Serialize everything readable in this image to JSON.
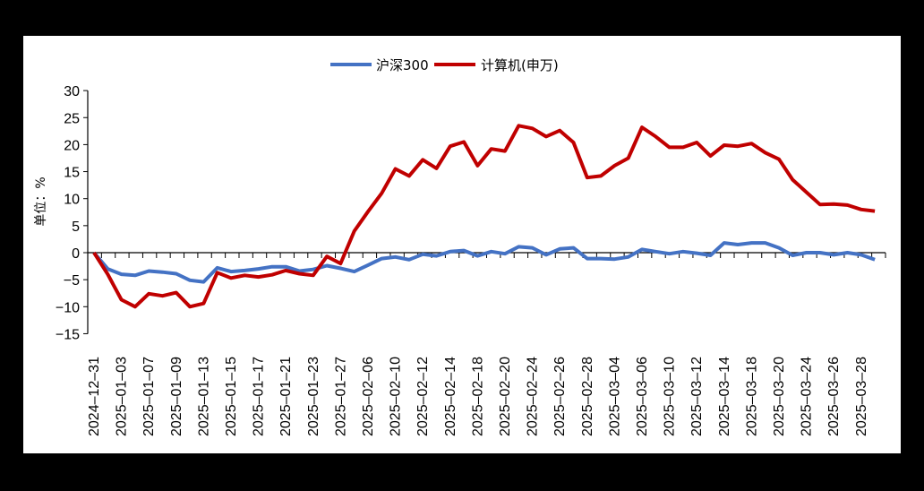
{
  "chart_data": {
    "type": "line",
    "title": "",
    "xlabel": "",
    "ylabel": "单位：%",
    "ylim": [
      -15,
      30
    ],
    "yticks": [
      30,
      25,
      20,
      15,
      10,
      5,
      0,
      -5,
      -10,
      -15
    ],
    "grid": false,
    "legend_position": "top",
    "x_tick_labels": [
      "2024-12-31",
      "2025-01-03",
      "2025-01-07",
      "2025-01-09",
      "2025-01-13",
      "2025-01-15",
      "2025-01-17",
      "2025-01-21",
      "2025-01-23",
      "2025-01-27",
      "2025-02-06",
      "2025-02-10",
      "2025-02-12",
      "2025-02-14",
      "2025-02-18",
      "2025-02-20",
      "2025-02-24",
      "2025-02-26",
      "2025-02-28",
      "2025-03-04",
      "2025-03-06",
      "2025-03-10",
      "2025-03-12",
      "2025-03-14",
      "2025-03-18",
      "2025-03-20",
      "2025-03-24",
      "2025-03-26",
      "2025-03-28"
    ],
    "label_every": 2,
    "point_count": 58,
    "series": [
      {
        "name": "沪深300",
        "color": "#4472C4",
        "values": [
          0,
          -3,
          -4,
          -4.2,
          -3.4,
          -3.6,
          -3.9,
          -5.1,
          -5.4,
          -2.8,
          -3.5,
          -3.3,
          -3,
          -2.6,
          -2.6,
          -3.4,
          -3.1,
          -2.4,
          -2.9,
          -3.5,
          -2.3,
          -1.1,
          -0.8,
          -1.3,
          -0.3,
          -0.6,
          0.2,
          0.4,
          -0.6,
          0.2,
          -0.2,
          1.1,
          0.9,
          -0.4,
          0.7,
          0.9,
          -1.1,
          -1.1,
          -1.2,
          -0.8,
          0.6,
          0.2,
          -0.2,
          0.2,
          -0.1,
          -0.5,
          1.8,
          1.5,
          1.8,
          1.8,
          0.9,
          -0.5,
          0,
          0,
          -0.4,
          0,
          -0.4,
          -1.3
        ]
      },
      {
        "name": "计算机(申万)",
        "color": "#C00000",
        "values": [
          0,
          -4,
          -8.7,
          -10,
          -7.6,
          -8,
          -7.4,
          -10,
          -9.4,
          -3.7,
          -4.7,
          -4.2,
          -4.5,
          -4.1,
          -3.3,
          -3.9,
          -4.2,
          -0.7,
          -2,
          4,
          7.6,
          11,
          15.5,
          14.2,
          17.2,
          15.6,
          19.7,
          20.5,
          16.1,
          19.2,
          18.8,
          23.5,
          23,
          21.5,
          22.6,
          20.4,
          13.9,
          14.2,
          16.1,
          17.5,
          23.2,
          21.5,
          19.5,
          19.5,
          20.4,
          17.9,
          19.9,
          19.7,
          20.2,
          18.5,
          17.3,
          13.5,
          11.2,
          8.9,
          9,
          8.8,
          8,
          7.7
        ]
      }
    ]
  },
  "legend": {
    "items": [
      {
        "label": "沪深300",
        "color": "#4472C4"
      },
      {
        "label": "计算机(申万)",
        "color": "#C00000"
      }
    ]
  },
  "axis": {
    "ylabel": "单位：%"
  }
}
